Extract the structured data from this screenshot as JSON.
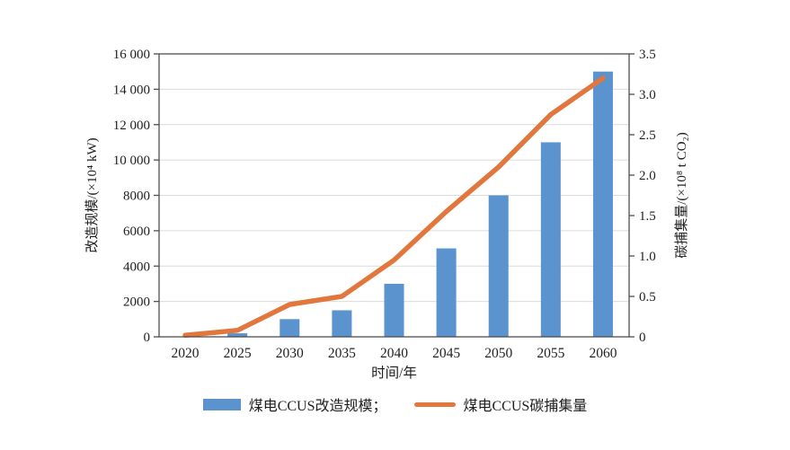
{
  "figure": {
    "background": "#ffffff"
  },
  "colors": {
    "bar": "#5b93ce",
    "line": "#e2773e",
    "grid": "#dcdcdc",
    "frame": "#4f4f4f",
    "text": "#1f1f1f"
  },
  "legend": {
    "bar_label": "煤电CCUS改造规模；",
    "line_label": "煤电CCUS碳捕集量"
  },
  "chart_data": {
    "type": "bar",
    "categories": [
      "2020",
      "2025",
      "2030",
      "2035",
      "2040",
      "2045",
      "2050",
      "2055",
      "2060"
    ],
    "series": [
      {
        "name": "煤电CCUS改造规模",
        "chart_type": "bar",
        "axis": "left",
        "values": [
          0,
          200,
          1000,
          1500,
          3000,
          5000,
          8000,
          11000,
          15000
        ]
      },
      {
        "name": "煤电CCUS碳捕集量",
        "chart_type": "line",
        "axis": "right",
        "values": [
          0.02,
          0.08,
          0.4,
          0.5,
          0.95,
          1.55,
          2.1,
          2.75,
          3.2
        ]
      }
    ],
    "xlabel": "时间/年",
    "ylabel_left": "改造规模/(×10⁴ kW)",
    "ylabel_right": "碳捕集量/(×10⁸ t CO₂)",
    "ylim_left": [
      0,
      16000
    ],
    "ylim_right": [
      0,
      3.5
    ],
    "ytick_step_left": 2000,
    "ytick_step_right": 0.5,
    "yticks_left_labels": [
      "0",
      "2000",
      "4000",
      "6000",
      "8000",
      "10 000",
      "12 000",
      "14 000",
      "16 000"
    ],
    "yticks_right_labels": [
      "0",
      "0.5",
      "1.0",
      "1.5",
      "2.0",
      "2.5",
      "3.0",
      "3.5"
    ],
    "grid": "horizontal",
    "legend_position": "bottom"
  }
}
